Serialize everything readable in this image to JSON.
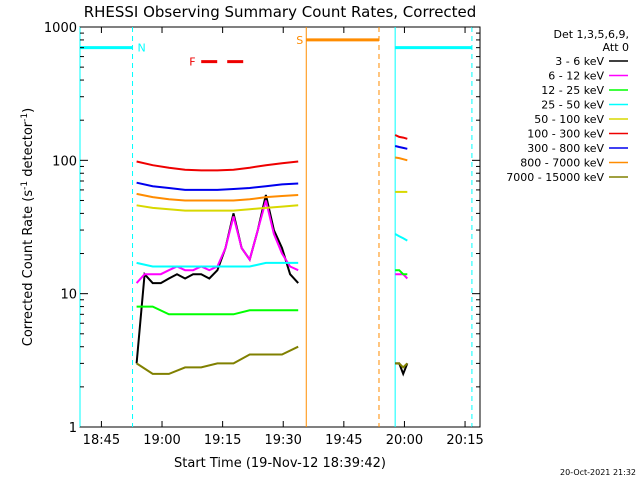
{
  "chart_data": {
    "type": "line",
    "title": "RHESSI Observing Summary Count Rates, Corrected",
    "xlabel": "Start Time (19-Nov-12 18:39:42)",
    "ylabel": "Corrected Count Rate (s",
    "ylabel_sup1": "-1",
    "ylabel_mid": " detector",
    "ylabel_sup2": "-1",
    "ylabel_end": ")",
    "yscale": "log",
    "ylim": [
      1,
      1000
    ],
    "xlim_minutes": [
      0,
      99
    ],
    "x_start": "18:39:42",
    "x_ticks": [
      {
        "label": "18:45",
        "minute": 5.3
      },
      {
        "label": "19:00",
        "minute": 20.3
      },
      {
        "label": "19:15",
        "minute": 35.3
      },
      {
        "label": "19:30",
        "minute": 50.3
      },
      {
        "label": "19:45",
        "minute": 65.3
      },
      {
        "label": "20:00",
        "minute": 80.3
      },
      {
        "label": "20:15",
        "minute": 95.3
      }
    ],
    "y_ticks": [
      {
        "label": "1",
        "value": 1
      },
      {
        "label": "10",
        "value": 10
      },
      {
        "label": "100",
        "value": 100
      },
      {
        "label": "1000",
        "value": 1000
      }
    ],
    "legend_title": [
      "Det 1,3,5,6,9,",
      "Att 0"
    ],
    "legend_position": "right",
    "series": [
      {
        "name": "3 - 6 keV",
        "color": "#000000",
        "segments": [
          {
            "x": [
              14,
              16,
              18,
              20,
              22,
              24,
              26,
              28,
              30,
              32,
              34,
              36,
              38,
              40,
              42,
              44,
              46,
              48,
              50,
              52,
              54
            ],
            "y": [
              3,
              14,
              12,
              12,
              13,
              14,
              13,
              14,
              14,
              13,
              15,
              22,
              40,
              22,
              18,
              30,
              55,
              30,
              22,
              14,
              12
            ]
          },
          {
            "x": [
              78,
              79,
              80,
              81
            ],
            "y": [
              3,
              3,
              2.5,
              3
            ]
          }
        ]
      },
      {
        "name": "6 - 12 keV",
        "color": "#ff00ff",
        "segments": [
          {
            "x": [
              14,
              16,
              18,
              20,
              22,
              24,
              26,
              28,
              30,
              32,
              34,
              36,
              38,
              40,
              42,
              44,
              46,
              48,
              50,
              52,
              54
            ],
            "y": [
              12,
              14,
              14,
              14,
              15,
              16,
              15,
              15,
              16,
              15,
              16,
              22,
              38,
              22,
              18,
              30,
              50,
              28,
              20,
              16,
              15
            ]
          },
          {
            "x": [
              78,
              79,
              80,
              81
            ],
            "y": [
              14,
              14,
              14,
              13
            ]
          }
        ]
      },
      {
        "name": "12 - 25 keV",
        "color": "#00ff00",
        "segments": [
          {
            "x": [
              14,
              18,
              22,
              26,
              30,
              34,
              38,
              42,
              46,
              50,
              54
            ],
            "y": [
              8,
              8,
              7,
              7,
              7,
              7,
              7,
              7.5,
              7.5,
              7.5,
              7.5
            ]
          },
          {
            "x": [
              78,
              79,
              80,
              81
            ],
            "y": [
              15,
              15,
              14,
              14
            ]
          }
        ]
      },
      {
        "name": "25 - 50 keV",
        "color": "#00ffff",
        "segments": [
          {
            "x": [
              14,
              18,
              22,
              26,
              30,
              34,
              38,
              42,
              46,
              50,
              54
            ],
            "y": [
              17,
              16,
              16,
              16,
              16,
              16,
              16,
              16,
              17,
              17,
              17
            ]
          },
          {
            "x": [
              78,
              79,
              80,
              81
            ],
            "y": [
              28,
              27,
              26,
              25
            ]
          }
        ]
      },
      {
        "name": "50 - 100 keV",
        "color": "#d8d800",
        "segments": [
          {
            "x": [
              14,
              18,
              22,
              26,
              30,
              34,
              38,
              42,
              46,
              50,
              54
            ],
            "y": [
              46,
              44,
              43,
              42,
              42,
              42,
              42,
              43,
              44,
              45,
              46
            ]
          },
          {
            "x": [
              78,
              79,
              80,
              81
            ],
            "y": [
              58,
              58,
              58,
              58
            ]
          }
        ]
      },
      {
        "name": "100 - 300 keV",
        "color": "#ee0000",
        "segments": [
          {
            "x": [
              14,
              18,
              22,
              26,
              30,
              34,
              38,
              42,
              46,
              50,
              54
            ],
            "y": [
              98,
              92,
              88,
              85,
              84,
              84,
              85,
              88,
              92,
              95,
              98
            ]
          },
          {
            "x": [
              78,
              79,
              80,
              81
            ],
            "y": [
              155,
              150,
              148,
              145
            ]
          }
        ]
      },
      {
        "name": "300 - 800 keV",
        "color": "#0000ee",
        "segments": [
          {
            "x": [
              14,
              18,
              22,
              26,
              30,
              34,
              38,
              42,
              46,
              50,
              54
            ],
            "y": [
              68,
              64,
              62,
              60,
              60,
              60,
              61,
              62,
              64,
              66,
              67
            ]
          },
          {
            "x": [
              78,
              79,
              80,
              81
            ],
            "y": [
              128,
              126,
              124,
              122
            ]
          }
        ]
      },
      {
        "name": "800 - 7000 keV",
        "color": "#ff8c00",
        "segments": [
          {
            "x": [
              14,
              18,
              22,
              26,
              30,
              34,
              38,
              42,
              46,
              50,
              54
            ],
            "y": [
              56,
              53,
              51,
              50,
              50,
              50,
              50,
              51,
              53,
              54,
              55
            ]
          },
          {
            "x": [
              78,
              79,
              80,
              81
            ],
            "y": [
              105,
              104,
              102,
              100
            ]
          }
        ]
      },
      {
        "name": "7000 - 15000 keV",
        "color": "#808000",
        "segments": [
          {
            "x": [
              14,
              18,
              22,
              26,
              30,
              34,
              38,
              42,
              46,
              50,
              54
            ],
            "y": [
              3,
              2.5,
              2.5,
              2.8,
              2.8,
              3,
              3,
              3.5,
              3.5,
              3.5,
              4
            ]
          },
          {
            "x": [
              78,
              79,
              80,
              81
            ],
            "y": [
              3,
              3,
              2.8,
              3
            ]
          }
        ]
      }
    ],
    "intervals": [
      {
        "label": "N",
        "color": "#00ffff",
        "y_value": 700,
        "x_start": 0,
        "x_end": 13,
        "dashed_at": 13
      },
      {
        "label": "",
        "color": "#00ffff",
        "y_value": 700,
        "x_start": 78,
        "x_end": 97,
        "dashed_at": 97
      },
      {
        "label": "S",
        "color": "#ff8c00",
        "y_value": 800,
        "x_start": 56,
        "x_end": 74,
        "dashed_at": 74
      },
      {
        "label": "F",
        "color": "#ee0000",
        "y_value": 550,
        "x_start": 30,
        "x_end": 41
      }
    ],
    "timestamp": "20-Oct-2021 21:32"
  }
}
